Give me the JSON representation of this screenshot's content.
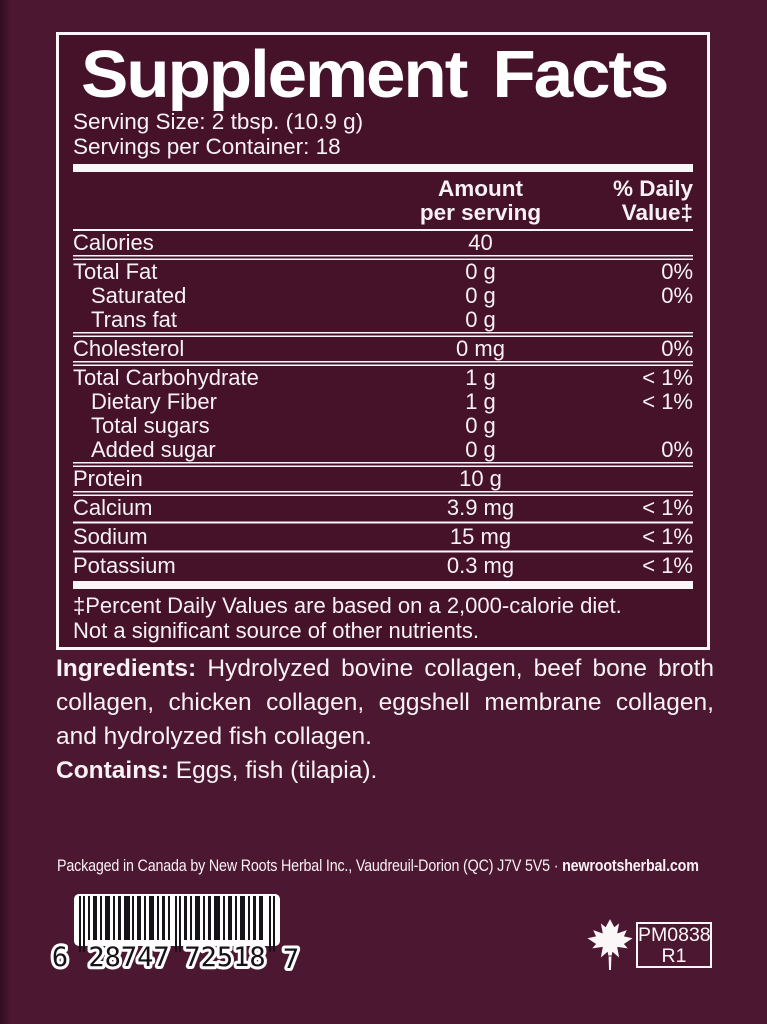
{
  "colors": {
    "page_bg": "#4C1731",
    "panel_bg": "#45122A",
    "line": "#FBF6F8",
    "text": "#F8F2F5",
    "bars": "#17121A"
  },
  "panel": {
    "title": "Supplement Facts",
    "serving_size": "Serving Size: 2 tbsp. (10.9 g)",
    "servings_per_container": "Servings per Container: 18",
    "header": {
      "amount_line1": "Amount",
      "amount_line2": "per serving",
      "dv_line1": "% Daily",
      "dv_line2": "Value‡"
    },
    "rows": [
      {
        "name": "Calories",
        "amount": "40",
        "dv": "",
        "indent": false,
        "sep": null
      },
      {
        "name": "Total Fat",
        "amount": "0 g",
        "dv": "0%",
        "indent": false,
        "sep": "double"
      },
      {
        "name": "Saturated",
        "amount": "0 g",
        "dv": "0%",
        "indent": true,
        "sep": null
      },
      {
        "name": "Trans fat",
        "amount": "0 g",
        "dv": "",
        "indent": true,
        "sep": null
      },
      {
        "name": "Cholesterol",
        "amount": "0 mg",
        "dv": "0%",
        "indent": false,
        "sep": "double"
      },
      {
        "name": "Total Carbohydrate",
        "amount": "1 g",
        "dv": "< 1%",
        "indent": false,
        "sep": "double"
      },
      {
        "name": "Dietary Fiber",
        "amount": "1 g",
        "dv": "< 1%",
        "indent": true,
        "sep": null
      },
      {
        "name": "Total sugars",
        "amount": "0 g",
        "dv": "",
        "indent": true,
        "sep": null
      },
      {
        "name": "Added sugar",
        "amount": "0 g",
        "dv": "0%",
        "indent": true,
        "sep": null
      },
      {
        "name": "Protein",
        "amount": "10 g",
        "dv": "",
        "indent": false,
        "sep": "double"
      },
      {
        "name": "Calcium",
        "amount": "3.9 mg",
        "dv": "< 1%",
        "indent": false,
        "sep": "double"
      },
      {
        "name": "Sodium",
        "amount": "15 mg",
        "dv": "< 1%",
        "indent": false,
        "sep": "single"
      },
      {
        "name": "Potassium",
        "amount": "0.3 mg",
        "dv": "< 1%",
        "indent": false,
        "sep": "single"
      }
    ],
    "footnote_line1": "‡Percent Daily Values are based on a 2,000-calorie diet.",
    "footnote_line2": "Not a significant source of other nutrients."
  },
  "ingredients": {
    "label": "Ingredients:",
    "text": " Hydrolyzed bovine collagen, beef bone broth collagen, chicken collagen, eggshell membrane collagen, and hydrolyzed fish collagen."
  },
  "contains": {
    "label": "Contains:",
    "text": " Eggs, fish (tilapia)."
  },
  "footer": {
    "packaged_text": "Packaged in Canada by New Roots Herbal Inc., Vaudreuil-Dorion (QC) J7V 5V5 · ",
    "website": "newrootsherbal.com"
  },
  "barcode": {
    "left_digit": "6",
    "group1": "28747",
    "group2": "72518",
    "right_digit": "7"
  },
  "codes": {
    "pm_code": "PM0838",
    "revision": "R1"
  }
}
